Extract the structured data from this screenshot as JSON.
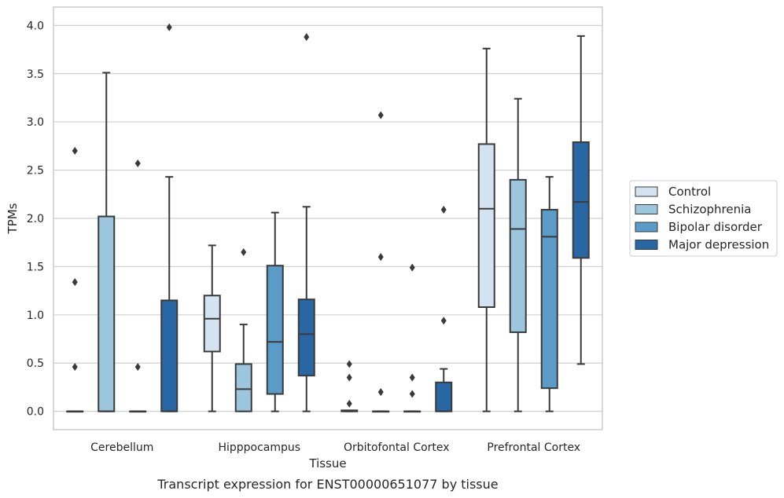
{
  "chart_data": {
    "type": "box",
    "caption": "Transcript expression for ENST00000651077 by tissue",
    "xlabel": "Tissue",
    "ylabel": "TPMs",
    "ylim": [
      -0.19,
      4.19
    ],
    "yticks": [
      0.0,
      0.5,
      1.0,
      1.5,
      2.0,
      2.5,
      3.0,
      3.5,
      4.0
    ],
    "ytick_labels": [
      "0.0",
      "0.5",
      "1.0",
      "1.5",
      "2.0",
      "2.5",
      "3.0",
      "3.5",
      "4.0"
    ],
    "grid": true,
    "legend_position": "right",
    "categories": [
      "Cerebellum",
      "Hipppocampus",
      "Orbitofontal Cortex",
      "Prefrontal Cortex"
    ],
    "series": [
      {
        "name": "Control",
        "color": "#d4e3f2",
        "boxes": [
          {
            "whisker_low": 0.0,
            "q1": 0.0,
            "median": 0.0,
            "q3": 0.0,
            "whisker_high": 0.0,
            "outliers": [
              2.7,
              1.34,
              0.46
            ]
          },
          {
            "whisker_low": 0.0,
            "q1": 0.62,
            "median": 0.96,
            "q3": 1.2,
            "whisker_high": 1.72,
            "outliers": []
          },
          {
            "whisker_low": 0.0,
            "q1": 0.0,
            "median": 0.0,
            "q3": 0.01,
            "whisker_high": 0.01,
            "outliers": [
              0.49,
              0.35,
              0.08
            ]
          },
          {
            "whisker_low": 0.0,
            "q1": 1.08,
            "median": 2.1,
            "q3": 2.77,
            "whisker_high": 3.76,
            "outliers": []
          }
        ]
      },
      {
        "name": "Schizophrenia",
        "color": "#9cc5de",
        "boxes": [
          {
            "whisker_low": 0.0,
            "q1": 0.0,
            "median": 0.0,
            "q3": 2.02,
            "whisker_high": 3.51,
            "outliers": []
          },
          {
            "whisker_low": 0.0,
            "q1": 0.0,
            "median": 0.23,
            "q3": 0.49,
            "whisker_high": 0.9,
            "outliers": [
              1.65
            ]
          },
          {
            "whisker_low": 0.0,
            "q1": 0.0,
            "median": 0.0,
            "q3": 0.0,
            "whisker_high": 0.0,
            "outliers": [
              3.07,
              1.6,
              0.2
            ]
          },
          {
            "whisker_low": 0.0,
            "q1": 0.82,
            "median": 1.89,
            "q3": 2.4,
            "whisker_high": 3.24,
            "outliers": []
          }
        ]
      },
      {
        "name": "Bipolar disorder",
        "color": "#5a9bc8",
        "boxes": [
          {
            "whisker_low": 0.0,
            "q1": 0.0,
            "median": 0.0,
            "q3": 0.0,
            "whisker_high": 0.0,
            "outliers": [
              2.57,
              0.46
            ]
          },
          {
            "whisker_low": 0.0,
            "q1": 0.18,
            "median": 0.72,
            "q3": 1.51,
            "whisker_high": 2.06,
            "outliers": []
          },
          {
            "whisker_low": 0.0,
            "q1": 0.0,
            "median": 0.0,
            "q3": 0.0,
            "whisker_high": 0.0,
            "outliers": [
              1.49,
              0.35,
              0.18
            ]
          },
          {
            "whisker_low": 0.0,
            "q1": 0.24,
            "median": 1.81,
            "q3": 2.09,
            "whisker_high": 2.43,
            "outliers": []
          }
        ]
      },
      {
        "name": "Major depression",
        "color": "#2866a4",
        "boxes": [
          {
            "whisker_low": 0.0,
            "q1": 0.0,
            "median": 0.0,
            "q3": 1.15,
            "whisker_high": 2.43,
            "outliers": [
              3.98
            ]
          },
          {
            "whisker_low": 0.0,
            "q1": 0.37,
            "median": 0.8,
            "q3": 1.16,
            "whisker_high": 2.12,
            "outliers": [
              3.88
            ]
          },
          {
            "whisker_low": 0.0,
            "q1": 0.0,
            "median": 0.0,
            "q3": 0.3,
            "whisker_high": 0.44,
            "outliers": [
              2.09,
              0.94
            ]
          },
          {
            "whisker_low": 0.49,
            "q1": 1.59,
            "median": 2.17,
            "q3": 2.79,
            "whisker_high": 3.89,
            "outliers": []
          }
        ]
      }
    ]
  }
}
